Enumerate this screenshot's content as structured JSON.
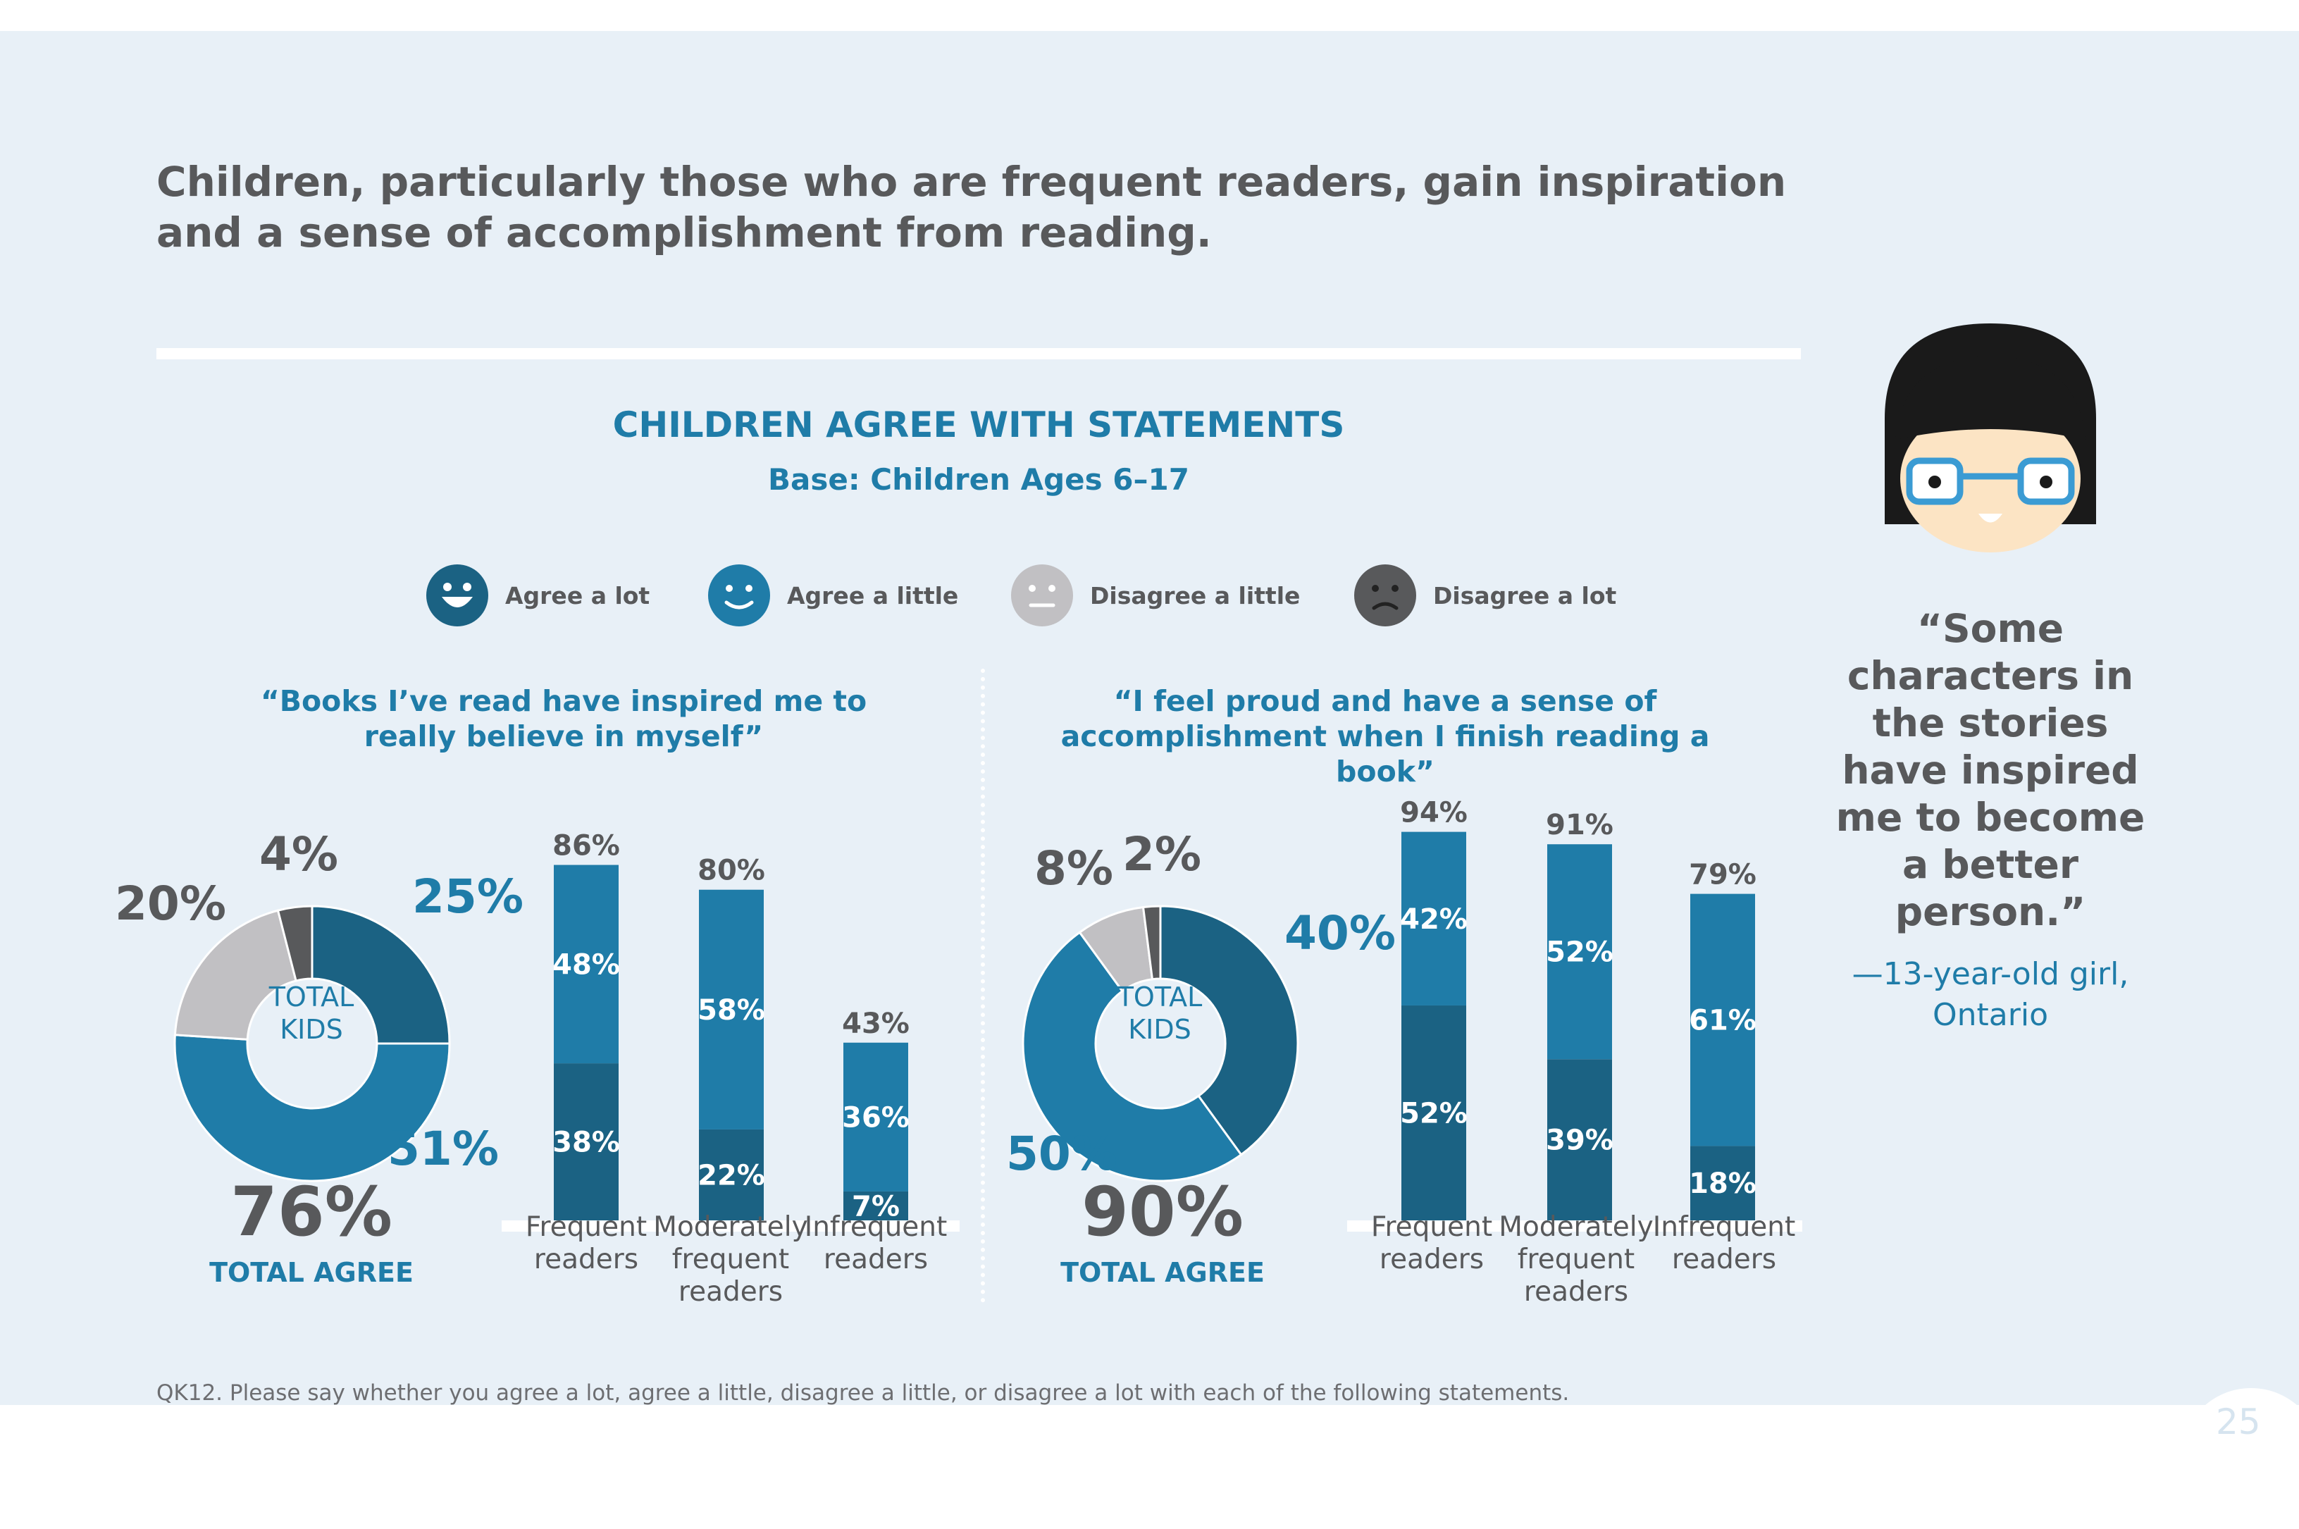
{
  "headline": "Children, particularly those who are frequent readers, gain inspiration and a sense of accomplishment from reading.",
  "chart_title": "CHILDREN AGREE WITH STATEMENTS",
  "chart_subtitle": "Base: Children Ages 6–17",
  "colors": {
    "agree_lot": "#1b6283",
    "agree_little": "#1f7ca8",
    "disagree_little": "#c1c0c3",
    "disagree_lot": "#58595b",
    "text_gray": "#58595b",
    "background": "#e8f0f7"
  },
  "legend": [
    {
      "label": "Agree a lot",
      "icon": "big-smile-face-icon",
      "color": "#1b6283"
    },
    {
      "label": "Agree a little",
      "icon": "smile-face-icon",
      "color": "#1f7ca8"
    },
    {
      "label": "Disagree a little",
      "icon": "neutral-face-icon",
      "color": "#c1c0c3"
    },
    {
      "label": "Disagree a lot",
      "icon": "frown-face-icon",
      "color": "#58595b"
    }
  ],
  "chart_data": [
    {
      "type": "pie",
      "statement": "“Books I’ve read have inspired me to really believe in myself”",
      "center_label_line1": "TOTAL",
      "center_label_line2": "KIDS",
      "slices": [
        {
          "name": "Agree a lot",
          "value": 25,
          "label": "25%"
        },
        {
          "name": "Agree a little",
          "value": 51,
          "label": "51%"
        },
        {
          "name": "Disagree a little",
          "value": 20,
          "label": "20%"
        },
        {
          "name": "Disagree a lot",
          "value": 4,
          "label": "4%"
        }
      ],
      "total_value": "76%",
      "total_label": "TOTAL AGREE"
    },
    {
      "type": "bar",
      "stacked": true,
      "categories": [
        "Frequent readers",
        "Moderately frequent readers",
        "Infrequent readers"
      ],
      "series": [
        {
          "name": "Agree a lot",
          "values": [
            38,
            22,
            7
          ],
          "labels": [
            "38%",
            "22%",
            "7%"
          ]
        },
        {
          "name": "Agree a little",
          "values": [
            48,
            58,
            36
          ],
          "labels": [
            "48%",
            "58%",
            "36%"
          ]
        }
      ],
      "totals": [
        86,
        80,
        43
      ],
      "total_labels": [
        "86%",
        "80%",
        "43%"
      ],
      "ylim": [
        0,
        100
      ]
    },
    {
      "type": "pie",
      "statement": "“I feel proud and have a sense of accomplishment when I finish reading a book”",
      "center_label_line1": "TOTAL",
      "center_label_line2": "KIDS",
      "slices": [
        {
          "name": "Agree a lot",
          "value": 40,
          "label": "40%"
        },
        {
          "name": "Agree a little",
          "value": 50,
          "label": "50%"
        },
        {
          "name": "Disagree a little",
          "value": 8,
          "label": "8%"
        },
        {
          "name": "Disagree a lot",
          "value": 2,
          "label": "2%"
        }
      ],
      "total_value": "90%",
      "total_label": "TOTAL AGREE"
    },
    {
      "type": "bar",
      "stacked": true,
      "categories": [
        "Frequent readers",
        "Moderately frequent readers",
        "Infrequent readers"
      ],
      "series": [
        {
          "name": "Agree a lot",
          "values": [
            52,
            39,
            18
          ],
          "labels": [
            "52%",
            "39%",
            "18%"
          ]
        },
        {
          "name": "Agree a little",
          "values": [
            42,
            52,
            61
          ],
          "labels": [
            "42%",
            "52%",
            "61%"
          ]
        }
      ],
      "totals": [
        94,
        91,
        79
      ],
      "total_labels": [
        "94%",
        "91%",
        "79%"
      ],
      "ylim": [
        0,
        100
      ]
    }
  ],
  "category_lines": [
    [
      "Frequent",
      "readers"
    ],
    [
      "Moderately",
      "frequent",
      "readers"
    ],
    [
      "Infrequent",
      "readers"
    ]
  ],
  "quote": "“Some characters in the stories have inspired me to become a better person.”",
  "attribution": "—13-year-old girl, Ontario",
  "footnote": "QK12. Please say whether you agree a lot, agree a little, disagree a little, or disagree a lot with each of the following statements.",
  "page_number": "25",
  "avatar_icon": "girl-with-glasses-icon"
}
